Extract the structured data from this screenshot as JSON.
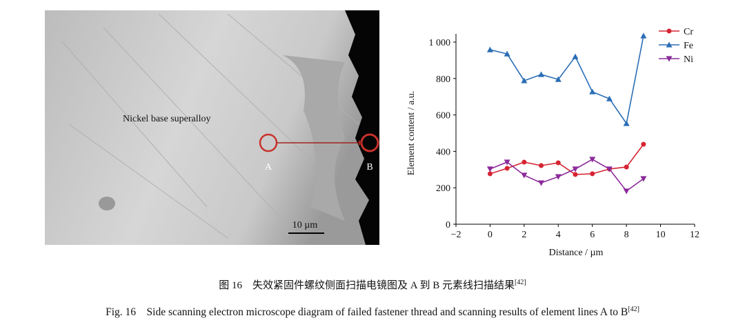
{
  "image": {
    "label": "Nickel base superalloy",
    "point_a": "A",
    "point_b": "B",
    "scale_bar": "10 µm"
  },
  "chart_data": {
    "type": "line",
    "xlabel": "Distance / µm",
    "ylabel": "Element content / a.u.",
    "x": [
      0,
      1,
      2,
      3,
      4,
      5,
      6,
      7,
      8,
      9
    ],
    "series": [
      {
        "name": "Cr",
        "color": "#d62433",
        "marker": "circle",
        "values": [
          277,
          307,
          341,
          322,
          337,
          273,
          277,
          303,
          314,
          439
        ]
      },
      {
        "name": "Fe",
        "color": "#2a6db5",
        "marker": "triangle-up",
        "values": [
          958,
          935,
          788,
          822,
          795,
          920,
          727,
          689,
          553,
          1034
        ]
      },
      {
        "name": "Ni",
        "color": "#8b2a9a",
        "marker": "triangle-down",
        "values": [
          303,
          341,
          269,
          227,
          261,
          303,
          356,
          303,
          182,
          250
        ]
      }
    ],
    "xlim": [
      -2,
      12
    ],
    "ylim": [
      0,
      1000
    ],
    "xticks": [
      {
        "value": -2,
        "label": "−2"
      },
      0,
      2,
      4,
      6,
      8,
      10,
      12
    ],
    "yticks": [
      0,
      200,
      400,
      600,
      800,
      {
        "value": 1000,
        "label": "1 000"
      }
    ],
    "legend": "upper right"
  },
  "caption": {
    "zh": "图 16　失效紧固件螺纹侧面扫描电镜图及 A 到 B 元素线扫描结果",
    "zh_ref": "[42]",
    "en": "Fig. 16　Side scanning electron microscope diagram of failed fastener thread and scanning results of element lines A to B",
    "en_ref": "[42]"
  }
}
